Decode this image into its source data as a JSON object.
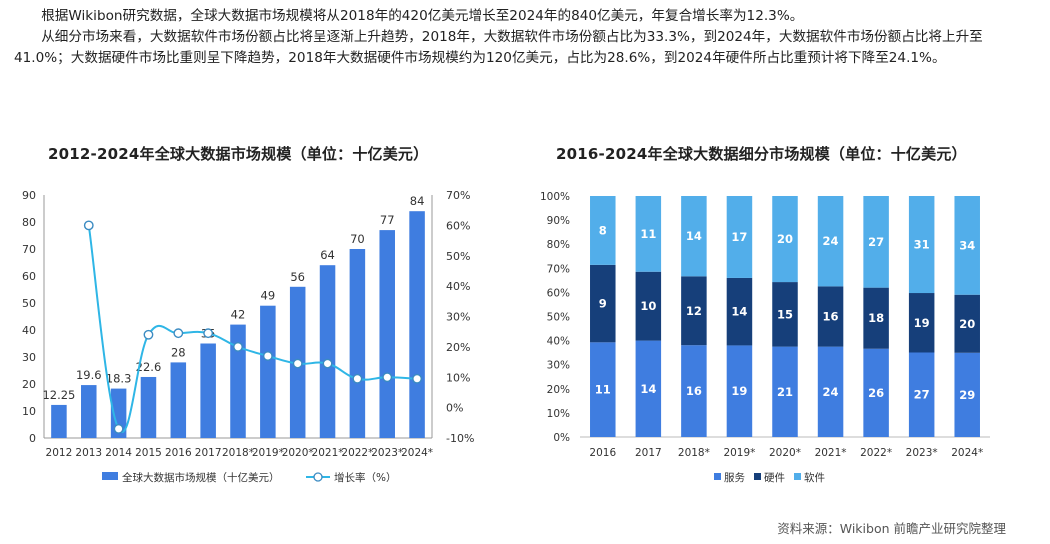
{
  "intro": {
    "p1": "根据Wikibon研究数据，全球大数据市场规模将从2018年的420亿美元增长至2024年的840亿美元，年复合增长率为12.3%。",
    "p2": "从细分市场来看，大数据软件市场份额占比将呈逐渐上升趋势，2018年，大数据软件市场份额占比为33.3%，到2024年，大数据软件市场份额占比将上升至41.0%；大数据硬件市场比重则呈下降趋势，2018年大数据硬件市场规模约为120亿美元，占比为28.6%，到2024年硬件所占比重预计将下降至24.1%。"
  },
  "source": "资料来源：Wikibon 前瞻产业研究院整理",
  "colors": {
    "bar": "#3f7de0",
    "line": "#2fb6e6",
    "service": "#3f7de0",
    "hardware": "#163f7a",
    "software": "#52aeea"
  },
  "chart_data": [
    {
      "type": "bar",
      "title": "2012-2024年全球大数据市场规模（单位：十亿美元）",
      "categories": [
        "2012",
        "2013",
        "2014",
        "2015",
        "2016",
        "2017",
        "2018*",
        "2019*",
        "2020*",
        "2021*",
        "2022*",
        "2023*",
        "2024*"
      ],
      "category_labels": [
        "2012",
        "2013",
        "2014",
        "2015",
        "2016",
        "2017",
        "2018*",
        "2019*",
        "2020*",
        "2021*",
        "2022*",
        "2023*",
        "2024*"
      ],
      "series": [
        {
          "name": "全球大数据市场规模（十亿美元）",
          "type": "bar",
          "axis": "left",
          "values": [
            12.25,
            19.6,
            18.3,
            22.6,
            28,
            35,
            42,
            49,
            56,
            64,
            70,
            77,
            84
          ],
          "labels": [
            "12.25",
            "19.6",
            "18.3",
            "22.6",
            "28",
            "35",
            "42",
            "49",
            "56",
            "64",
            "70",
            "77",
            "84"
          ]
        },
        {
          "name": "增长率（%）",
          "type": "line",
          "axis": "right",
          "values": [
            null,
            60,
            -7,
            24,
            24.5,
            24.5,
            20,
            17,
            14.5,
            14.5,
            9.5,
            10,
            9.5
          ]
        }
      ],
      "ylim": [
        0,
        90
      ],
      "yticks": [
        "0",
        "10",
        "20",
        "30",
        "40",
        "50",
        "60",
        "70",
        "80",
        "90"
      ],
      "y2lim": [
        -10,
        70
      ],
      "y2ticks": [
        "-10%",
        "0%",
        "10%",
        "20%",
        "30%",
        "40%",
        "50%",
        "60%",
        "70%"
      ],
      "legend_position": "bottom"
    },
    {
      "type": "bar",
      "stacked": true,
      "title": "2016-2024年全球大数据细分市场规模（单位：十亿美元）",
      "categories": [
        "2016",
        "2017",
        "2018*",
        "2019*",
        "2020*",
        "2021*",
        "2022*",
        "2023*",
        "2024*"
      ],
      "series": [
        {
          "name": "服务",
          "values": [
            11,
            14,
            16,
            19,
            21,
            24,
            26,
            27,
            29
          ]
        },
        {
          "name": "硬件",
          "values": [
            9,
            10,
            12,
            14,
            15,
            16,
            18,
            19,
            20
          ]
        },
        {
          "name": "软件",
          "values": [
            8,
            11,
            14,
            17,
            20,
            24,
            27,
            31,
            34
          ]
        }
      ],
      "ylim": [
        0,
        100
      ],
      "yticks": [
        "0%",
        "10%",
        "20%",
        "30%",
        "40%",
        "50%",
        "60%",
        "70%",
        "80%",
        "90%",
        "100%"
      ],
      "legend_position": "bottom"
    }
  ]
}
